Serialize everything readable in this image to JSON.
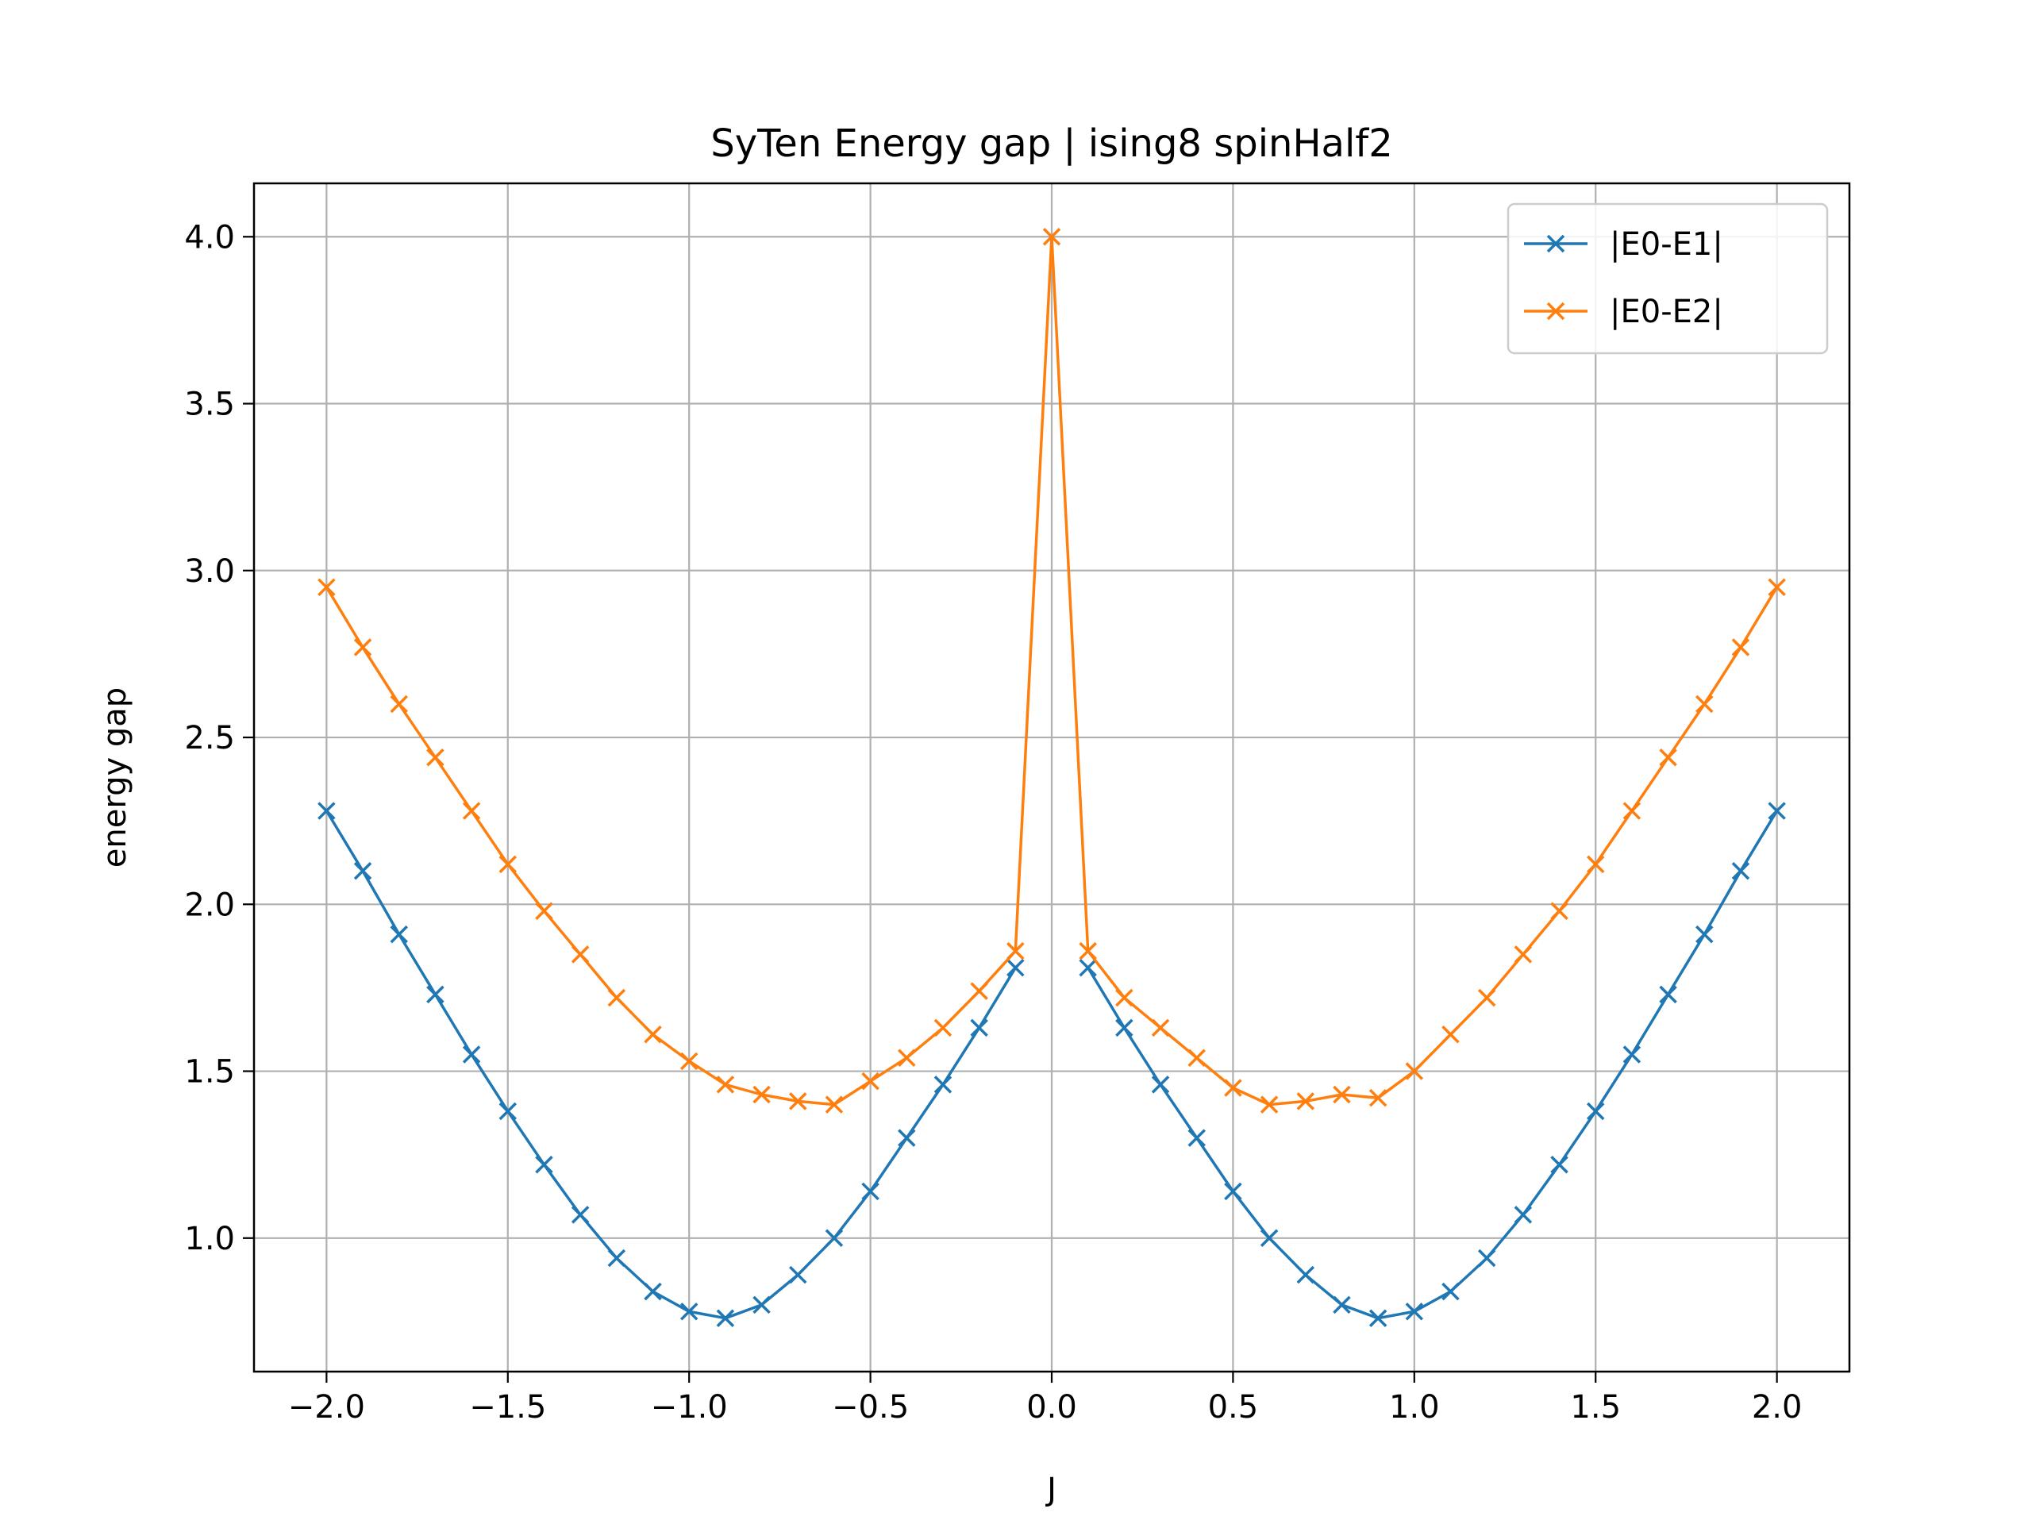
{
  "chart_data": {
    "type": "line",
    "title": "SyTen Energy gap | ising8 spinHalf2",
    "xlabel": "J",
    "ylabel": "energy gap",
    "xlim": [
      -2.2,
      2.2
    ],
    "ylim": [
      0.6,
      4.16
    ],
    "xticks": [
      -2.0,
      -1.5,
      -1.0,
      -0.5,
      0.0,
      0.5,
      1.0,
      1.5,
      2.0
    ],
    "xtick_labels": [
      "−2.0",
      "−1.5",
      "−1.0",
      "−0.5",
      "0.0",
      "0.5",
      "1.0",
      "1.5",
      "2.0"
    ],
    "yticks": [
      1.0,
      1.5,
      2.0,
      2.5,
      3.0,
      3.5,
      4.0
    ],
    "ytick_labels": [
      "1.0",
      "1.5",
      "2.0",
      "2.5",
      "3.0",
      "3.5",
      "4.0"
    ],
    "grid": true,
    "legend_position": "top-right",
    "x": [
      -2.0,
      -1.9,
      -1.8,
      -1.7,
      -1.6,
      -1.5,
      -1.4,
      -1.3,
      -1.2,
      -1.1,
      -1.0,
      -0.9,
      -0.8,
      -0.7,
      -0.6,
      -0.5,
      -0.4,
      -0.3,
      -0.2,
      -0.1,
      0.0,
      0.1,
      0.2,
      0.3,
      0.4,
      0.5,
      0.6,
      0.7,
      0.8,
      0.9,
      1.0,
      1.1,
      1.2,
      1.3,
      1.4,
      1.5,
      1.6,
      1.7,
      1.8,
      1.9,
      2.0
    ],
    "series": [
      {
        "name": "|E0-E1|",
        "color": "#1f77b4",
        "marker": "x",
        "values": [
          2.28,
          2.1,
          1.91,
          1.73,
          1.55,
          1.38,
          1.22,
          1.07,
          0.94,
          0.84,
          0.78,
          0.76,
          0.8,
          0.89,
          1.0,
          1.14,
          1.3,
          1.46,
          1.63,
          1.81,
          null,
          1.81,
          1.63,
          1.46,
          1.3,
          1.14,
          1.0,
          0.89,
          0.8,
          0.76,
          0.78,
          0.84,
          0.94,
          1.07,
          1.22,
          1.38,
          1.55,
          1.73,
          1.91,
          2.1,
          2.28
        ]
      },
      {
        "name": "|E0-E2|",
        "color": "#ff7f0e",
        "marker": "x",
        "values": [
          2.95,
          2.77,
          2.6,
          2.44,
          2.28,
          2.12,
          1.98,
          1.85,
          1.72,
          1.61,
          1.53,
          1.46,
          1.43,
          1.41,
          1.4,
          1.47,
          1.54,
          1.63,
          1.74,
          1.86,
          4.0,
          1.86,
          1.72,
          1.63,
          1.54,
          1.45,
          1.4,
          1.41,
          1.43,
          1.42,
          1.5,
          1.61,
          1.72,
          1.85,
          1.98,
          2.12,
          2.28,
          2.44,
          2.6,
          2.77,
          2.95
        ]
      }
    ]
  }
}
